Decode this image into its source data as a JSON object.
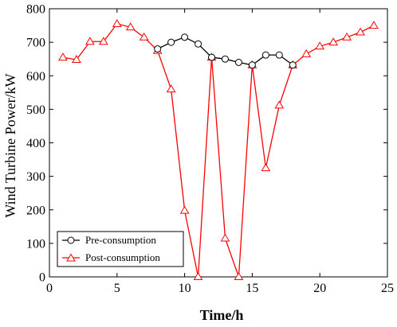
{
  "chart_data": {
    "type": "line",
    "xlabel": "Time/h",
    "ylabel": "Wind Turbine Power/kW",
    "xlim": [
      0,
      25
    ],
    "ylim": [
      0,
      800
    ],
    "xticks": [
      0,
      5,
      10,
      15,
      20,
      25
    ],
    "yticks": [
      0,
      100,
      200,
      300,
      400,
      500,
      600,
      700,
      800
    ],
    "grid": false,
    "legend_position": "bottom-left",
    "series": [
      {
        "name": "Pre-consumption",
        "color": "#000000",
        "marker": "circle",
        "x": [
          8,
          9,
          10,
          11,
          12,
          13,
          14,
          15,
          16,
          17,
          18
        ],
        "y": [
          680,
          700,
          715,
          695,
          655,
          650,
          640,
          632,
          662,
          662,
          632
        ]
      },
      {
        "name": "Post-consumption",
        "color": "#ff0000",
        "marker": "triangle",
        "x": [
          1,
          2,
          3,
          4,
          5,
          6,
          7,
          8,
          9,
          10,
          11,
          12,
          13,
          14,
          15,
          16,
          17,
          18,
          19,
          20,
          21,
          22,
          23,
          24
        ],
        "y": [
          655,
          648,
          702,
          702,
          755,
          745,
          715,
          675,
          560,
          198,
          0,
          655,
          115,
          0,
          632,
          325,
          512,
          632,
          665,
          688,
          700,
          715,
          730,
          750
        ]
      }
    ]
  }
}
